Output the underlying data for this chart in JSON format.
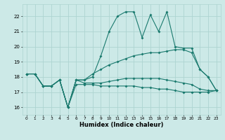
{
  "xlabel": "Humidex (Indice chaleur)",
  "x_values": [
    0,
    1,
    2,
    3,
    4,
    5,
    6,
    7,
    8,
    9,
    10,
    11,
    12,
    13,
    14,
    15,
    16,
    17,
    18,
    19,
    20,
    21,
    22,
    23
  ],
  "line1": [
    18.2,
    18.2,
    17.4,
    17.4,
    17.8,
    16.0,
    17.8,
    17.8,
    18.0,
    19.4,
    21.0,
    22.0,
    22.3,
    22.3,
    20.6,
    22.1,
    21.0,
    22.3,
    20.0,
    19.9,
    19.9,
    18.5,
    18.0,
    17.1
  ],
  "line2": [
    18.2,
    18.2,
    17.4,
    17.4,
    17.8,
    16.0,
    17.8,
    17.8,
    18.2,
    18.5,
    18.8,
    19.0,
    19.2,
    19.4,
    19.5,
    19.6,
    19.6,
    19.7,
    19.8,
    19.8,
    19.6,
    18.5,
    18.0,
    17.1
  ],
  "line3": [
    18.2,
    18.2,
    17.4,
    17.4,
    17.8,
    16.0,
    17.8,
    17.6,
    17.6,
    17.6,
    17.7,
    17.8,
    17.9,
    17.9,
    17.9,
    17.9,
    17.9,
    17.8,
    17.7,
    17.6,
    17.5,
    17.2,
    17.1,
    17.1
  ],
  "line4": [
    18.2,
    18.2,
    17.4,
    17.4,
    17.8,
    16.0,
    17.5,
    17.5,
    17.5,
    17.4,
    17.4,
    17.4,
    17.4,
    17.4,
    17.3,
    17.3,
    17.2,
    17.2,
    17.1,
    17.0,
    17.0,
    17.0,
    17.0,
    17.1
  ],
  "ylim": [
    15.5,
    22.8
  ],
  "yticks": [
    16,
    17,
    18,
    19,
    20,
    21,
    22
  ],
  "xticks": [
    0,
    1,
    2,
    3,
    4,
    5,
    6,
    7,
    8,
    9,
    10,
    11,
    12,
    13,
    14,
    15,
    16,
    17,
    18,
    19,
    20,
    21,
    22,
    23
  ],
  "color": "#1a7a6e",
  "bg_color": "#cce9e7",
  "grid_color": "#add4d1"
}
